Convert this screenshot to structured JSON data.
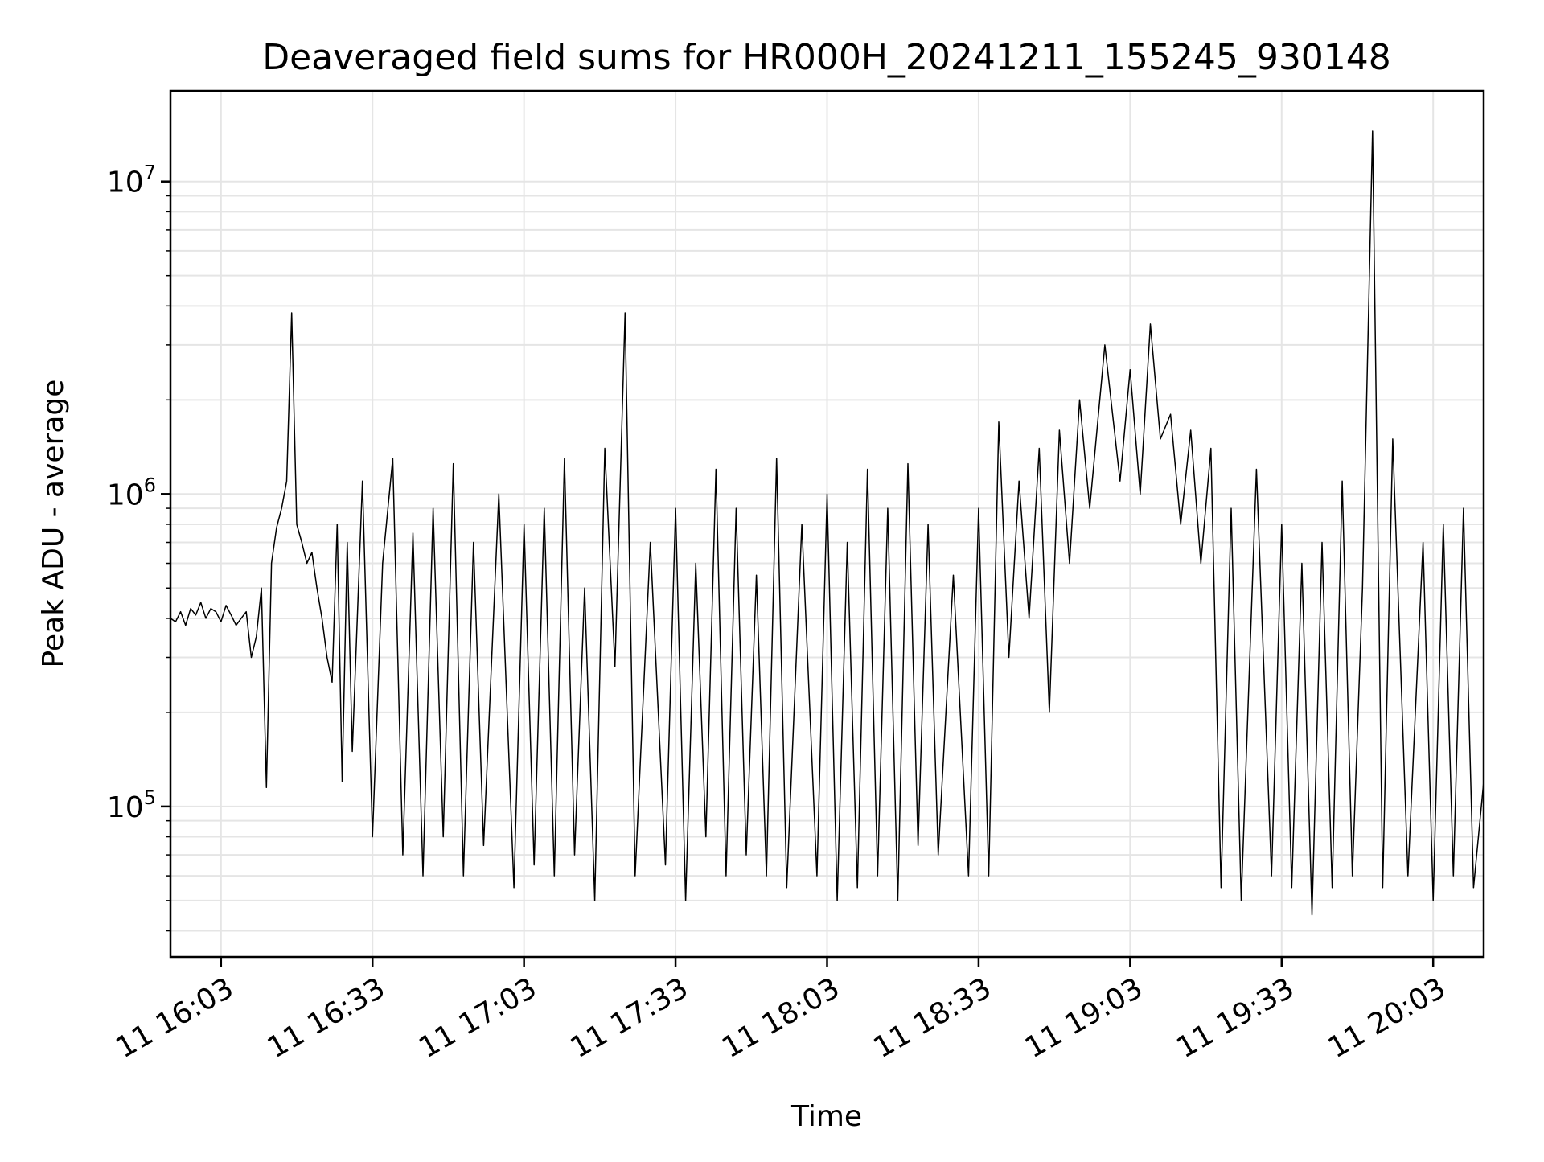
{
  "chart_data": {
    "type": "line",
    "title": "Deaveraged field sums for HR000H_20241211_155245_930148",
    "xlabel": "Time",
    "ylabel": "Peak ADU - average",
    "yscale": "log",
    "ylim": [
      33000,
      19500000
    ],
    "x_ticks": [
      "11 16:03",
      "11 16:33",
      "11 17:03",
      "11 17:33",
      "11 18:03",
      "11 18:33",
      "11 19:03",
      "11 19:33",
      "11 20:03"
    ],
    "y_ticks": [
      {
        "value": 100000,
        "base": "10",
        "exp": "5"
      },
      {
        "value": 1000000,
        "base": "10",
        "exp": "6"
      },
      {
        "value": 10000000,
        "base": "10",
        "exp": "7"
      }
    ],
    "grid": true,
    "line_color": "#000000",
    "grid_color": "#e5e5e5",
    "x_start": "2024-12-11 15:53",
    "x_end": "2024-12-11 20:13",
    "series": [
      {
        "x_minutes_from_1603_tick": [
          -10,
          -9,
          -8,
          -7,
          -6,
          -5,
          -4,
          -3,
          -2,
          -1,
          0,
          1,
          2,
          3,
          4,
          5,
          6,
          7,
          8,
          9,
          10,
          11,
          12,
          13,
          14,
          15,
          16,
          17,
          18,
          19,
          20,
          21,
          22,
          23,
          24,
          25,
          26,
          28,
          30,
          32,
          34,
          36,
          38,
          40,
          42,
          44,
          46,
          48,
          50,
          52,
          55,
          58,
          60,
          62,
          64,
          66,
          68,
          70,
          72,
          74,
          76,
          78,
          80,
          82,
          85,
          88,
          90,
          92,
          94,
          96,
          98,
          100,
          102,
          104,
          106,
          108,
          110,
          112,
          115,
          118,
          120,
          122,
          124,
          126,
          128,
          130,
          132,
          134,
          136,
          138,
          140,
          142,
          145,
          148,
          150,
          152,
          154,
          156,
          158,
          160,
          162,
          164,
          166,
          168,
          170,
          172,
          175,
          178,
          180,
          182,
          184,
          186,
          188,
          190,
          192,
          194,
          196,
          198,
          200,
          202,
          205,
          208,
          210,
          212,
          214,
          216,
          218,
          220,
          222,
          224,
          226,
          228,
          230,
          232,
          235,
          238,
          240,
          242,
          244,
          246,
          248,
          250
        ],
        "values": [
          400000,
          390000,
          420000,
          380000,
          430000,
          410000,
          450000,
          400000,
          430000,
          420000,
          390000,
          440000,
          410000,
          380000,
          400000,
          420000,
          300000,
          350000,
          500000,
          115000,
          600000,
          780000,
          900000,
          1100000,
          3800000,
          800000,
          700000,
          600000,
          650000,
          500000,
          400000,
          300000,
          250000,
          800000,
          120000,
          700000,
          150000,
          1100000,
          80000,
          600000,
          1300000,
          70000,
          750000,
          60000,
          900000,
          80000,
          1250000,
          60000,
          700000,
          75000,
          1000000,
          55000,
          800000,
          65000,
          900000,
          60000,
          1300000,
          70000,
          500000,
          50000,
          1400000,
          280000,
          3800000,
          60000,
          700000,
          65000,
          900000,
          50000,
          600000,
          80000,
          1200000,
          60000,
          900000,
          70000,
          550000,
          60000,
          1300000,
          55000,
          800000,
          60000,
          1000000,
          50000,
          700000,
          55000,
          1200000,
          60000,
          900000,
          50000,
          1250000,
          75000,
          800000,
          70000,
          550000,
          60000,
          900000,
          60000,
          1700000,
          300000,
          1100000,
          400000,
          1400000,
          200000,
          1600000,
          600000,
          2000000,
          900000,
          3000000,
          1100000,
          2500000,
          1000000,
          3500000,
          1500000,
          1800000,
          800000,
          1600000,
          600000,
          1400000,
          55000,
          900000,
          50000,
          1200000,
          60000,
          800000,
          55000,
          600000,
          45000,
          700000,
          55000,
          1100000,
          60000,
          500000,
          14500000,
          55000,
          1500000,
          60000,
          700000,
          50000,
          800000,
          60000,
          900000,
          55000,
          120000
        ]
      }
    ]
  }
}
